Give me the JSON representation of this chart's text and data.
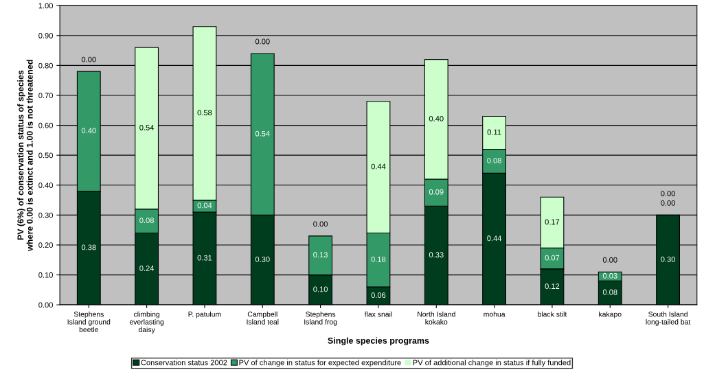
{
  "chart_data": {
    "type": "bar",
    "stacked": true,
    "categories": [
      "Stephens\nIsland ground\nbeetle",
      "climbing\neverlasting\ndaisy",
      "P. patulum",
      "Campbell\nIsland teal",
      "Stephens\nIsland frog",
      "flax snail",
      "North Island\nkokako",
      "mohua",
      "black stilt",
      "kakapo",
      "South Island\nlong-tailed bat"
    ],
    "series": [
      {
        "name": "Conservation status 2002",
        "color": "#003c1e",
        "values": [
          0.38,
          0.24,
          0.31,
          0.3,
          0.1,
          0.06,
          0.33,
          0.44,
          0.12,
          0.08,
          0.3
        ],
        "value_labels": [
          "0.38",
          "0.24",
          "0.31",
          "0.30",
          "0.10",
          "0.06",
          "0.33",
          "0.44",
          "0.12",
          "0.08",
          "0.30"
        ]
      },
      {
        "name": "PV of change in status for expected expenditure",
        "color": "#339966",
        "values": [
          0.4,
          0.08,
          0.04,
          0.54,
          0.13,
          0.18,
          0.09,
          0.08,
          0.07,
          0.03,
          0.0
        ],
        "value_labels": [
          "0.40",
          "0.08",
          "0.04",
          "0.54",
          "0.13",
          "0.18",
          "0.09",
          "0.08",
          "0.07",
          "0.03",
          "0.00"
        ]
      },
      {
        "name": "PV of additional change in status if fully funded",
        "color": "#ccffcc",
        "values": [
          0.0,
          0.54,
          0.58,
          0.0,
          0.0,
          0.44,
          0.4,
          0.11,
          0.17,
          0.0,
          0.0
        ],
        "value_labels": [
          "0.00",
          "0.54",
          "0.58",
          "0.00",
          "0.00",
          "0.44",
          "0.40",
          "0.11",
          "0.17",
          "0.00",
          "0.00"
        ]
      }
    ],
    "xlabel": "Single species programs",
    "ylabel": "PV (6%) of conservation status of species\nwhere 0.00 is extinct and 1.00 is not threatened",
    "ylim": [
      0,
      1
    ],
    "yticks": [
      {
        "value": 0,
        "label": "0.00"
      },
      {
        "value": 0.1,
        "label": "0.10"
      },
      {
        "value": 0.2,
        "label": "0.20"
      },
      {
        "value": 0.3,
        "label": "0.30"
      },
      {
        "value": 0.4,
        "label": "0.40"
      },
      {
        "value": 0.5,
        "label": "0.50"
      },
      {
        "value": 0.6,
        "label": "0.60"
      },
      {
        "value": 0.7,
        "label": "0.70"
      },
      {
        "value": 0.8,
        "label": "0.80"
      },
      {
        "value": 0.9,
        "label": "0.90"
      },
      {
        "value": 1.0,
        "label": "1.00"
      }
    ],
    "grid": "y",
    "legend": "bottom"
  }
}
